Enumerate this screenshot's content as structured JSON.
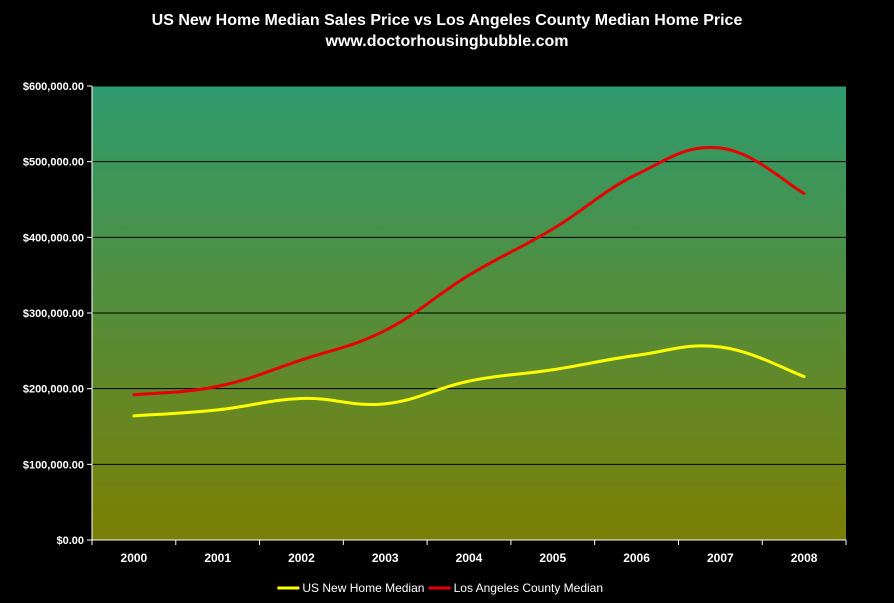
{
  "chart_data": {
    "type": "line",
    "title": "US New Home Median Sales Price vs Los Angeles County Median Home Price",
    "subtitle": "www.doctorhousingbubble.com",
    "xlabel": "",
    "ylabel": "",
    "categories": [
      "2000",
      "2001",
      "2002",
      "2003",
      "2004",
      "2005",
      "2006",
      "2007",
      "2008"
    ],
    "ylim": [
      0,
      600000
    ],
    "yticks": [
      0,
      100000,
      200000,
      300000,
      400000,
      500000,
      600000
    ],
    "ytick_labels": [
      "$0.00",
      "$100,000.00",
      "$200,000.00",
      "$300,000.00",
      "$400,000.00",
      "$500,000.00",
      "$600,000.00"
    ],
    "grid": "horizontal",
    "legend_position": "bottom",
    "series": [
      {
        "name": "US New Home Median",
        "color": "#ffff00",
        "values": [
          164000,
          172000,
          187000,
          180000,
          210000,
          225000,
          244000,
          255000,
          216000
        ]
      },
      {
        "name": "Los Angeles County Median",
        "color": "#e60000",
        "values": [
          192000,
          203000,
          238000,
          277000,
          350000,
          411000,
          483000,
          518000,
          458000
        ]
      }
    ],
    "colors": {
      "background": "#000000",
      "plot_top": "#2e9b6e",
      "plot_bottom": "#7c7f05",
      "gridline": "#000000",
      "text": "#ffffff"
    }
  }
}
